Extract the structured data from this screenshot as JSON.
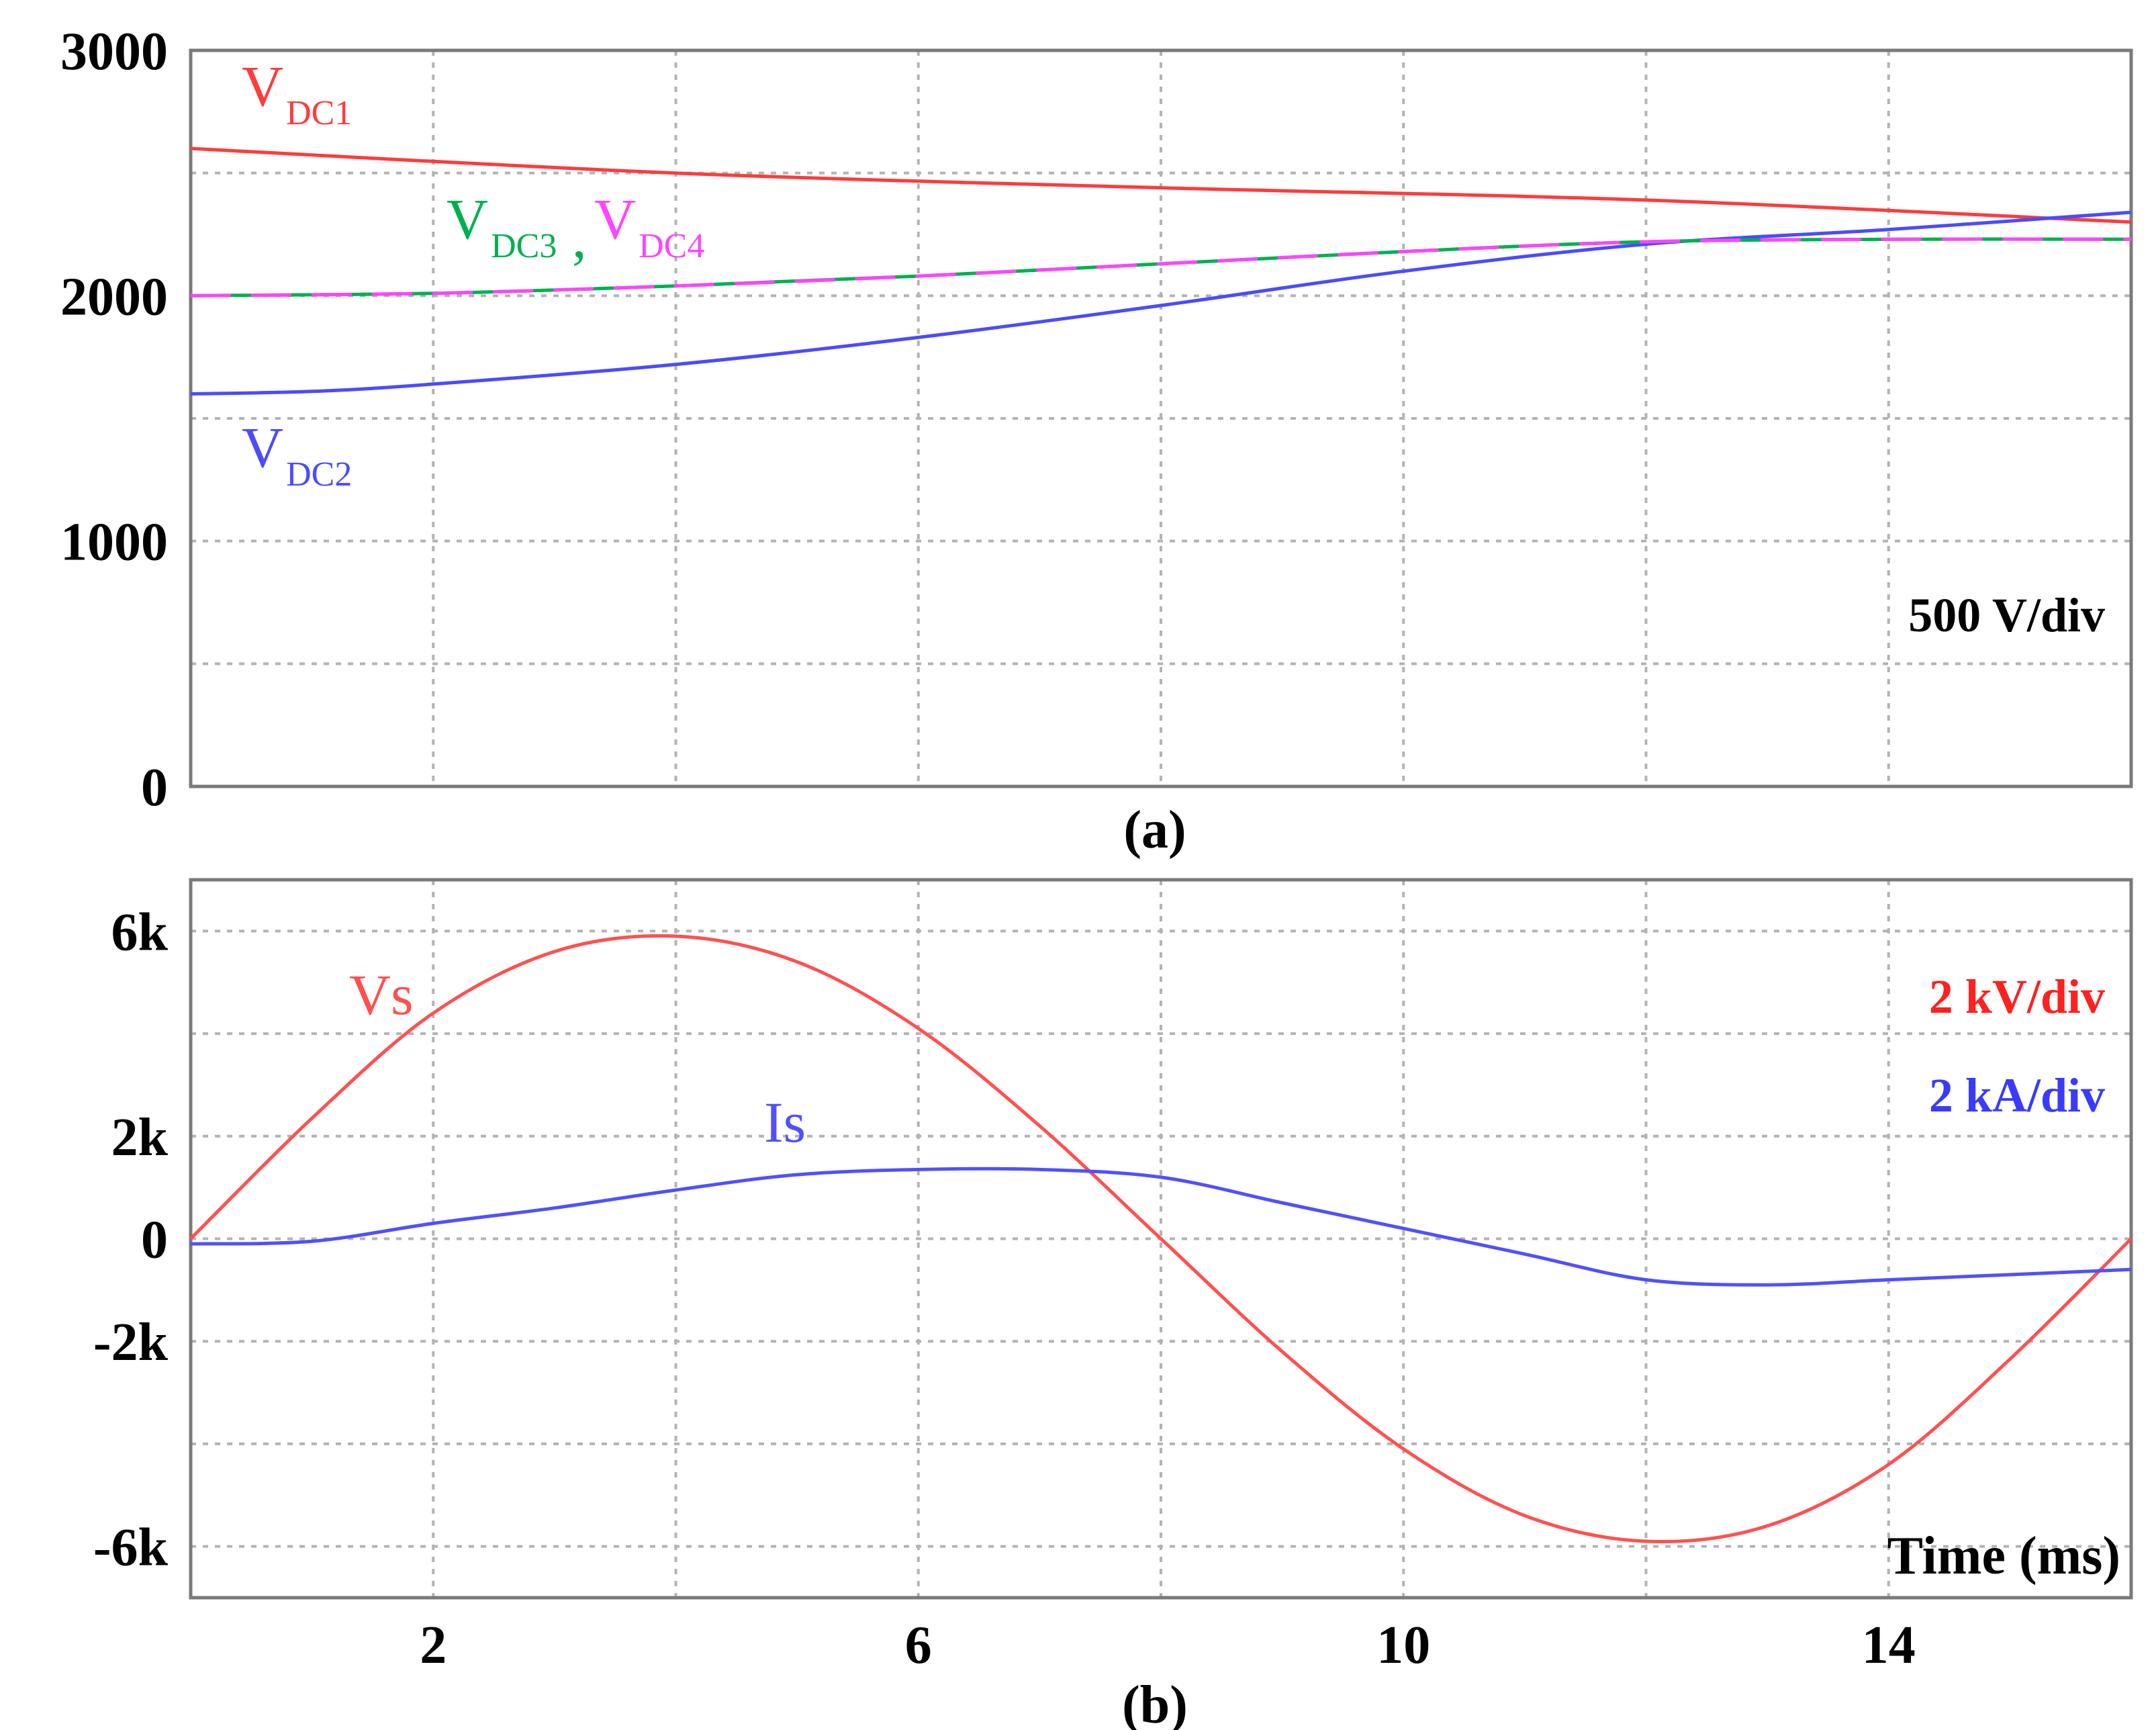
{
  "chart_data": [
    {
      "type": "line",
      "caption": "(a)",
      "scale_note": "500 V/div",
      "xlim": [
        0,
        16
      ],
      "ylim": [
        0,
        3000
      ],
      "yticks": [
        0,
        1000,
        2000,
        3000
      ],
      "ytick_labels": [
        "0",
        "1000",
        "2000",
        "3000"
      ],
      "grid": true,
      "series": [
        {
          "name": "VDC1",
          "label_main": "V",
          "label_sub": "DC1",
          "color": "#ff3b3b",
          "x": [
            0,
            4,
            8,
            12,
            16
          ],
          "values": [
            2600,
            2500,
            2440,
            2390,
            2300
          ]
        },
        {
          "name": "VDC2",
          "label_main": "V",
          "label_sub": "DC2",
          "color": "#4b4bff",
          "x": [
            0,
            1,
            2,
            4,
            6,
            8,
            10,
            12,
            14,
            16
          ],
          "values": [
            1600,
            1610,
            1640,
            1720,
            1830,
            1960,
            2100,
            2210,
            2270,
            2340
          ]
        },
        {
          "name": "VDC3",
          "label_main": "V",
          "label_sub": "DC3",
          "color": "#00b050",
          "x": [
            0,
            2,
            4,
            6,
            8,
            10,
            12,
            14,
            16
          ],
          "values": [
            2000,
            2010,
            2040,
            2080,
            2130,
            2180,
            2220,
            2230,
            2230
          ]
        },
        {
          "name": "VDC4",
          "label_main": "V",
          "label_sub": "DC4",
          "color": "#ff44ff",
          "x": [
            0,
            2,
            4,
            6,
            8,
            10,
            12,
            14,
            16
          ],
          "values": [
            2000,
            2010,
            2040,
            2080,
            2130,
            2180,
            2220,
            2230,
            2230
          ]
        }
      ]
    },
    {
      "type": "line",
      "caption": "(b)",
      "xlabel": "Time (ms)",
      "xlim": [
        0,
        16
      ],
      "xticks": [
        2,
        6,
        10,
        14
      ],
      "xtick_labels": [
        "2",
        "6",
        "10",
        "14"
      ],
      "ylim": [
        -7000,
        7000
      ],
      "yticks": [
        6000,
        2000,
        0,
        -2000,
        -6000
      ],
      "ytick_labels": [
        "6k",
        "2k",
        "0",
        "-2k",
        "-6k"
      ],
      "grid": true,
      "scale_notes": [
        {
          "text": "2 kV/div",
          "color": "#ff2020"
        },
        {
          "text": "2 kA/div",
          "color": "#3a3aff"
        }
      ],
      "series": [
        {
          "name": "Vs",
          "label_main": "Vs",
          "color": "#ff5050",
          "x": [
            0,
            1,
            2,
            3,
            4,
            5,
            6,
            7,
            8,
            9,
            10,
            11,
            12,
            13,
            14,
            15,
            16
          ],
          "values": [
            0,
            2350,
            4400,
            5600,
            5900,
            5400,
            4100,
            2200,
            0,
            -2200,
            -4100,
            -5400,
            -5900,
            -5600,
            -4400,
            -2350,
            0
          ]
        },
        {
          "name": "Is",
          "label_main": "Is",
          "color": "#5050ff",
          "x": [
            0,
            1,
            2,
            3,
            4,
            5,
            6,
            7,
            8,
            9,
            10,
            11,
            12,
            13,
            14,
            15,
            16
          ],
          "values": [
            -100,
            -50,
            300,
            600,
            950,
            1250,
            1350,
            1350,
            1200,
            700,
            200,
            -300,
            -800,
            -900,
            -800,
            -700,
            -600
          ]
        }
      ]
    }
  ]
}
